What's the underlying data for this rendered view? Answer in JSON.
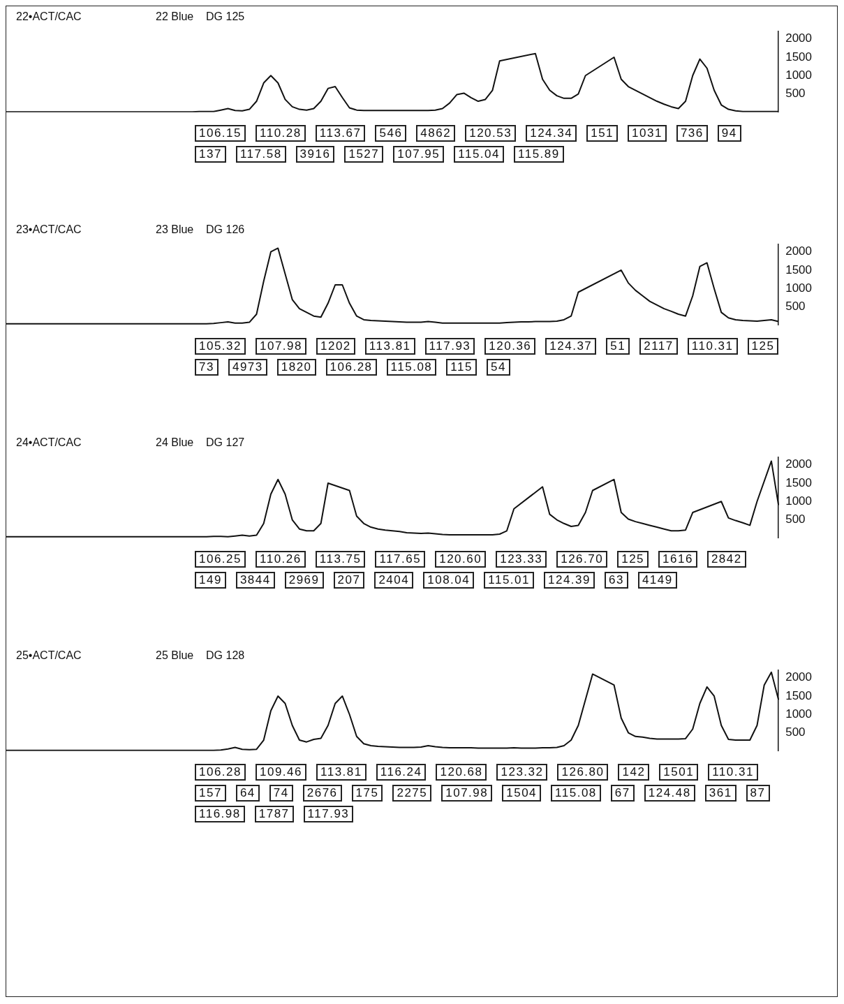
{
  "chart_data": [
    {
      "type": "line",
      "title": "22•ACT/CAC",
      "subtitle": "22 Blue    DG 125",
      "color": "#111111",
      "ylim": [
        0,
        2200
      ],
      "yticks": [
        500,
        1000,
        1500,
        2000
      ],
      "grid": false,
      "legend": false,
      "tick_labels": "y",
      "categories": [
        null,
        null,
        null,
        null,
        null,
        null,
        null,
        null,
        null,
        null,
        null,
        null,
        null,
        null,
        null,
        null,
        null,
        null,
        null,
        null,
        null,
        null,
        null,
        null,
        null,
        null,
        null,
        null,
        null,
        null,
        null,
        null,
        null,
        null,
        null,
        null,
        null,
        null,
        null,
        null,
        null,
        null,
        null,
        null,
        null,
        null,
        null,
        null,
        null,
        null,
        null,
        null,
        null,
        null,
        null,
        null,
        null,
        null,
        null,
        null,
        null,
        null,
        null,
        null,
        null,
        null,
        null,
        null,
        null,
        null,
        null,
        null,
        null,
        null,
        null,
        null,
        null,
        null,
        null,
        null,
        null,
        null,
        null,
        null,
        null,
        null,
        null,
        null,
        null,
        null,
        null,
        null,
        null,
        null,
        null,
        null,
        null,
        null,
        null,
        null,
        null,
        null,
        null,
        null,
        null,
        null,
        null,
        null,
        null
      ],
      "values": [
        10,
        10,
        10,
        10,
        10,
        10,
        10,
        10,
        10,
        10,
        10,
        10,
        10,
        10,
        10,
        10,
        10,
        10,
        10,
        10,
        10,
        10,
        10,
        10,
        10,
        10,
        10,
        20,
        20,
        20,
        60,
        100,
        50,
        40,
        80,
        300,
        800,
        1000,
        800,
        350,
        150,
        80,
        60,
        100,
        300,
        650,
        700,
        400,
        120,
        60,
        50,
        50,
        50,
        50,
        50,
        50,
        50,
        50,
        50,
        50,
        60,
        100,
        250,
        480,
        520,
        400,
        300,
        350,
        600,
        1400,
        null,
        null,
        null,
        null,
        1600,
        900,
        600,
        450,
        380,
        380,
        500,
        1000,
        null,
        null,
        null,
        1500,
        900,
        700,
        600,
        500,
        400,
        300,
        220,
        150,
        100,
        300,
        1000,
        1450,
        1200,
        600,
        200,
        80,
        40,
        20,
        20,
        20,
        20,
        20,
        20
      ],
      "annotations": [
        "106.15",
        "110.28",
        "113.67",
        "546",
        "4862",
        "120.53",
        "124.34",
        "151",
        "1031",
        "736",
        "94",
        "137",
        "117.58",
        "3916",
        "1527",
        "107.95",
        "115.04",
        "115.89"
      ]
    },
    {
      "type": "line",
      "title": "23•ACT/CAC",
      "subtitle": "23 Blue    DG 126",
      "color": "#111111",
      "ylim": [
        0,
        2200
      ],
      "yticks": [
        500,
        1000,
        1500,
        2000
      ],
      "grid": false,
      "legend": false,
      "tick_labels": "y",
      "categories": [
        null,
        null,
        null,
        null,
        null,
        null,
        null,
        null,
        null,
        null,
        null,
        null,
        null,
        null,
        null,
        null,
        null,
        null,
        null,
        null,
        null,
        null,
        null,
        null,
        null,
        null,
        null,
        null,
        null,
        null,
        null,
        null,
        null,
        null,
        null,
        null,
        null,
        null,
        null,
        null,
        null,
        null,
        null,
        null,
        null,
        null,
        null,
        null,
        null,
        null,
        null,
        null,
        null,
        null,
        null,
        null,
        null,
        null,
        null,
        null,
        null,
        null,
        null,
        null,
        null,
        null,
        null,
        null,
        null,
        null,
        null,
        null,
        null,
        null,
        null,
        null,
        null,
        null,
        null,
        null,
        null,
        null,
        null,
        null,
        null,
        null,
        null,
        null,
        null,
        null,
        null,
        null,
        null,
        null,
        null,
        null,
        null,
        null,
        null,
        null,
        null,
        null,
        null,
        null,
        null,
        null,
        null,
        null,
        null
      ],
      "values": [
        40,
        40,
        40,
        40,
        40,
        40,
        40,
        40,
        40,
        40,
        40,
        40,
        40,
        40,
        40,
        40,
        40,
        40,
        40,
        40,
        40,
        40,
        40,
        40,
        40,
        40,
        40,
        40,
        40,
        50,
        70,
        90,
        60,
        60,
        80,
        300,
        1200,
        2000,
        2100,
        1400,
        700,
        450,
        350,
        250,
        220,
        600,
        1100,
        1100,
        600,
        250,
        150,
        130,
        120,
        110,
        100,
        90,
        80,
        80,
        80,
        100,
        80,
        60,
        60,
        60,
        60,
        60,
        60,
        60,
        60,
        60,
        70,
        80,
        90,
        90,
        100,
        100,
        100,
        110,
        150,
        250,
        900,
        null,
        null,
        null,
        null,
        null,
        1500,
        1150,
        950,
        800,
        650,
        550,
        450,
        380,
        300,
        250,
        800,
        1600,
        1700,
        1000,
        350,
        200,
        150,
        130,
        120,
        110,
        130,
        150,
        100
      ],
      "annotations": [
        "105.32",
        "107.98",
        "1202",
        "113.81",
        "117.93",
        "120.36",
        "124.37",
        "51",
        "2117",
        "110.31",
        "125",
        "73",
        "4973",
        "1820",
        "106.28",
        "115.08",
        "115",
        "54"
      ]
    },
    {
      "type": "line",
      "title": "24•ACT/CAC",
      "subtitle": "24 Blue    DG 127",
      "color": "#111111",
      "ylim": [
        0,
        2200
      ],
      "yticks": [
        500,
        1000,
        1500,
        2000
      ],
      "grid": false,
      "legend": false,
      "tick_labels": "y",
      "categories": [
        null,
        null,
        null,
        null,
        null,
        null,
        null,
        null,
        null,
        null,
        null,
        null,
        null,
        null,
        null,
        null,
        null,
        null,
        null,
        null,
        null,
        null,
        null,
        null,
        null,
        null,
        null,
        null,
        null,
        null,
        null,
        null,
        null,
        null,
        null,
        null,
        null,
        null,
        null,
        null,
        null,
        null,
        null,
        null,
        null,
        null,
        null,
        null,
        null,
        null,
        null,
        null,
        null,
        null,
        null,
        null,
        null,
        null,
        null,
        null,
        null,
        null,
        null,
        null,
        null,
        null,
        null,
        null,
        null,
        null,
        null,
        null,
        null,
        null,
        null,
        null,
        null,
        null,
        null,
        null,
        null,
        null,
        null,
        null,
        null,
        null,
        null,
        null,
        null,
        null,
        null,
        null,
        null,
        null,
        null,
        null,
        null,
        null,
        null,
        null,
        null,
        null,
        null,
        null,
        null,
        null,
        null,
        null,
        null
      ],
      "values": [
        40,
        40,
        40,
        40,
        40,
        40,
        40,
        40,
        40,
        40,
        40,
        40,
        40,
        40,
        40,
        40,
        40,
        40,
        40,
        40,
        40,
        40,
        40,
        40,
        40,
        40,
        40,
        40,
        40,
        50,
        50,
        40,
        60,
        80,
        60,
        80,
        400,
        1200,
        1600,
        1200,
        500,
        250,
        200,
        200,
        400,
        1500,
        null,
        null,
        1300,
        600,
        400,
        300,
        250,
        220,
        200,
        180,
        150,
        140,
        130,
        140,
        120,
        100,
        90,
        90,
        90,
        90,
        90,
        90,
        90,
        110,
        200,
        800,
        null,
        null,
        null,
        1400,
        650,
        500,
        400,
        320,
        350,
        700,
        1300,
        null,
        null,
        1600,
        700,
        520,
        450,
        400,
        350,
        300,
        250,
        200,
        200,
        220,
        700,
        null,
        null,
        null,
        1000,
        550,
        480,
        420,
        350,
        1000,
        null,
        2100,
        900
      ],
      "annotations": [
        "106.25",
        "110.26",
        "113.75",
        "117.65",
        "120.60",
        "123.33",
        "126.70",
        "125",
        "1616",
        "2842",
        "149",
        "3844",
        "2969",
        "207",
        "2404",
        "108.04",
        "115.01",
        "124.39",
        "63",
        "4149"
      ]
    },
    {
      "type": "line",
      "title": "25•ACT/CAC",
      "subtitle": "25 Blue    DG 128",
      "color": "#111111",
      "ylim": [
        0,
        2200
      ],
      "yticks": [
        500,
        1000,
        1500,
        2000
      ],
      "grid": false,
      "legend": false,
      "tick_labels": "y",
      "categories": [
        null,
        null,
        null,
        null,
        null,
        null,
        null,
        null,
        null,
        null,
        null,
        null,
        null,
        null,
        null,
        null,
        null,
        null,
        null,
        null,
        null,
        null,
        null,
        null,
        null,
        null,
        null,
        null,
        null,
        null,
        null,
        null,
        null,
        null,
        null,
        null,
        null,
        null,
        null,
        null,
        null,
        null,
        null,
        null,
        null,
        null,
        null,
        null,
        null,
        null,
        null,
        null,
        null,
        null,
        null,
        null,
        null,
        null,
        null,
        null,
        null,
        null,
        null,
        null,
        null,
        null,
        null,
        null,
        null,
        null,
        null,
        null,
        null,
        null,
        null,
        null,
        null,
        null,
        null,
        null,
        null,
        null,
        null,
        null,
        null,
        null,
        null,
        null,
        null,
        null,
        null,
        null,
        null,
        null,
        null,
        null,
        null,
        null,
        null,
        null,
        null,
        null,
        null,
        null,
        null,
        null,
        null,
        null,
        null
      ],
      "values": [
        20,
        20,
        20,
        20,
        20,
        20,
        20,
        20,
        20,
        20,
        20,
        20,
        20,
        20,
        20,
        20,
        20,
        20,
        20,
        20,
        20,
        20,
        20,
        20,
        20,
        20,
        20,
        20,
        20,
        20,
        30,
        60,
        100,
        50,
        40,
        50,
        300,
        1100,
        1500,
        1300,
        700,
        300,
        250,
        320,
        350,
        700,
        1300,
        1500,
        1000,
        400,
        200,
        150,
        130,
        120,
        110,
        100,
        100,
        100,
        110,
        150,
        120,
        100,
        90,
        90,
        90,
        90,
        80,
        80,
        80,
        80,
        80,
        90,
        80,
        80,
        80,
        90,
        90,
        100,
        150,
        300,
        700,
        1400,
        2100,
        null,
        null,
        1800,
        900,
        500,
        400,
        380,
        350,
        330,
        330,
        330,
        330,
        340,
        600,
        1300,
        1750,
        1500,
        700,
        320,
        300,
        300,
        300,
        700,
        1800,
        2150,
        1400
      ],
      "annotations": [
        "106.28",
        "109.46",
        "113.81",
        "116.24",
        "120.68",
        "123.32",
        "126.80",
        "142",
        "1501",
        "110.31",
        "157",
        "64",
        "74",
        "2676",
        "175",
        "2275",
        "107.98",
        "1504",
        "115.08",
        "67",
        "124.48",
        "361",
        "87",
        "116.98",
        "1787",
        "117.93"
      ]
    }
  ]
}
